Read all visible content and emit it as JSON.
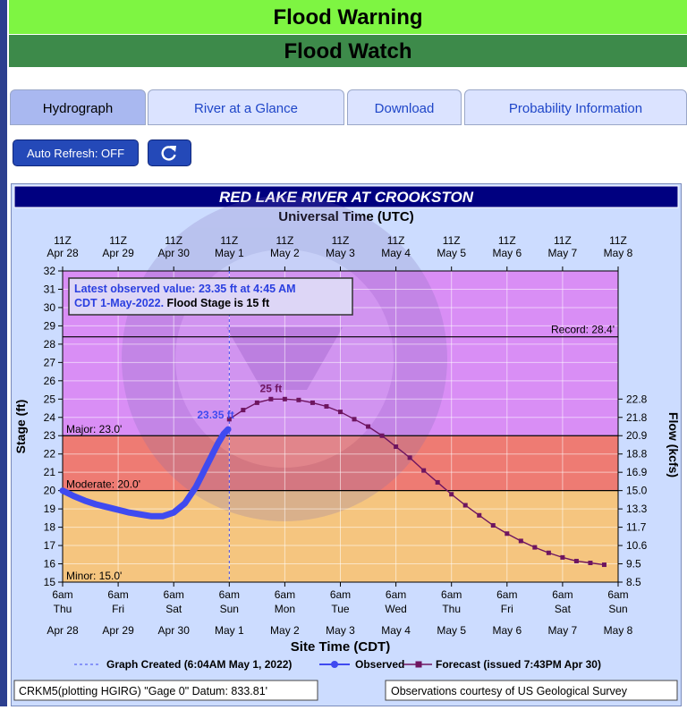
{
  "banners": {
    "warning": "Flood Warning",
    "watch": "Flood Watch"
  },
  "tabs": [
    {
      "label": "Hydrograph",
      "active": true
    },
    {
      "label": "River at a Glance",
      "active": false
    },
    {
      "label": "Download",
      "active": false
    },
    {
      "label": "Probability Information",
      "active": false
    }
  ],
  "controls": {
    "auto_refresh_label": "Auto Refresh: OFF",
    "refresh_icon": "refresh-icon"
  },
  "colors": {
    "record": "#d98ef5",
    "major": "#ee7b73",
    "moderate": "#f5c57f",
    "observed": "#3f4af0",
    "forecast": "#6e1560",
    "title_bar": "#000080",
    "panel": "#ccdcff"
  },
  "chart_data": {
    "type": "line",
    "title": "RED LAKE RIVER AT CROOKSTON",
    "top_axis_title": "Universal Time (UTC)",
    "top_ticks": [
      [
        "11Z",
        "Apr 28"
      ],
      [
        "11Z",
        "Apr 29"
      ],
      [
        "11Z",
        "Apr 30"
      ],
      [
        "11Z",
        "May 1"
      ],
      [
        "11Z",
        "May 2"
      ],
      [
        "11Z",
        "May 3"
      ],
      [
        "11Z",
        "May 4"
      ],
      [
        "11Z",
        "May 5"
      ],
      [
        "11Z",
        "May 6"
      ],
      [
        "11Z",
        "May 7"
      ],
      [
        "11Z",
        "May 8"
      ]
    ],
    "bottom_ticks": [
      [
        "6am",
        "Thu",
        "Apr 28"
      ],
      [
        "6am",
        "Fri",
        "Apr 29"
      ],
      [
        "6am",
        "Sat",
        "Apr 30"
      ],
      [
        "6am",
        "Sun",
        "May 1"
      ],
      [
        "6am",
        "Mon",
        "May 2"
      ],
      [
        "6am",
        "Tue",
        "May 3"
      ],
      [
        "6am",
        "Wed",
        "May 4"
      ],
      [
        "6am",
        "Thu",
        "May 5"
      ],
      [
        "6am",
        "Fri",
        "May 6"
      ],
      [
        "6am",
        "Sat",
        "May 7"
      ],
      [
        "6am",
        "Sun",
        "May 8"
      ]
    ],
    "xlabel": "Site Time (CDT)",
    "ylabel": "Stage (ft)",
    "y2label": "Flow (kcfs)",
    "ylim": [
      15,
      32
    ],
    "y_ticks": [
      15,
      16,
      17,
      18,
      19,
      20,
      21,
      22,
      23,
      24,
      25,
      26,
      27,
      28,
      29,
      30,
      31,
      32
    ],
    "flow_ticks": [
      {
        "stage": 15,
        "label": "8.5"
      },
      {
        "stage": 16,
        "label": "9.5"
      },
      {
        "stage": 17,
        "label": "10.6"
      },
      {
        "stage": 18,
        "label": "11.7"
      },
      {
        "stage": 19,
        "label": "13.3"
      },
      {
        "stage": 20,
        "label": "15.0"
      },
      {
        "stage": 21,
        "label": "16.9"
      },
      {
        "stage": 22,
        "label": "18.8"
      },
      {
        "stage": 23,
        "label": "20.9"
      },
      {
        "stage": 24,
        "label": "21.8"
      },
      {
        "stage": 25,
        "label": "22.8"
      }
    ],
    "x_range_days": [
      0,
      10
    ],
    "categories_note": "x values are days after 6am CDT Apr 28",
    "flood_categories": [
      {
        "label": "Minor: 15.0'",
        "stage": 15.0
      },
      {
        "label": "Moderate: 20.0'",
        "stage": 20.0
      },
      {
        "label": "Major: 23.0'",
        "stage": 23.0
      },
      {
        "label": "Record: 28.4'",
        "stage": 28.4
      }
    ],
    "info_box": {
      "line1": "Latest observed value: 23.35 ft at 4:45 AM",
      "line2a": "CDT 1-May-2022.",
      "line2b": " Flood Stage is 15 ft"
    },
    "observed_label": "23.35 ft",
    "forecast_peak_label": "25 ft",
    "graph_created_x": 3.0,
    "series": [
      {
        "name": "Observed",
        "kind": "observed",
        "x": [
          0,
          0.2,
          0.4,
          0.6,
          0.8,
          1.0,
          1.2,
          1.4,
          1.6,
          1.8,
          2.0,
          2.2,
          2.4,
          2.5,
          2.6,
          2.7,
          2.8,
          2.9,
          2.98
        ],
        "y": [
          20.0,
          19.7,
          19.45,
          19.25,
          19.1,
          18.95,
          18.8,
          18.7,
          18.6,
          18.6,
          18.8,
          19.3,
          20.2,
          20.8,
          21.4,
          22.0,
          22.6,
          23.1,
          23.35
        ]
      },
      {
        "name": "Forecast (issued 7:43PM Apr 30)",
        "kind": "forecast",
        "x": [
          3.0,
          3.25,
          3.5,
          3.75,
          4.0,
          4.25,
          4.5,
          4.75,
          5.0,
          5.25,
          5.5,
          5.75,
          6.0,
          6.25,
          6.5,
          6.75,
          7.0,
          7.25,
          7.5,
          7.75,
          8.0,
          8.25,
          8.5,
          8.75,
          9.0,
          9.25,
          9.5,
          9.75
        ],
        "y": [
          23.9,
          24.4,
          24.8,
          25.0,
          25.0,
          24.95,
          24.8,
          24.6,
          24.3,
          23.9,
          23.5,
          23.0,
          22.4,
          21.8,
          21.1,
          20.45,
          19.8,
          19.2,
          18.65,
          18.1,
          17.65,
          17.25,
          16.9,
          16.6,
          16.35,
          16.15,
          16.05,
          15.95
        ]
      }
    ],
    "legend": {
      "created": "Graph Created (6:04AM May 1, 2022)",
      "observed": "Observed",
      "forecast": "Forecast (issued 7:43PM Apr 30)"
    },
    "footer_left": "CRKM5(plotting HGIRG) \"Gage 0\" Datum: 833.81'",
    "footer_right": "Observations courtesy of US Geological Survey",
    "grid": true
  }
}
